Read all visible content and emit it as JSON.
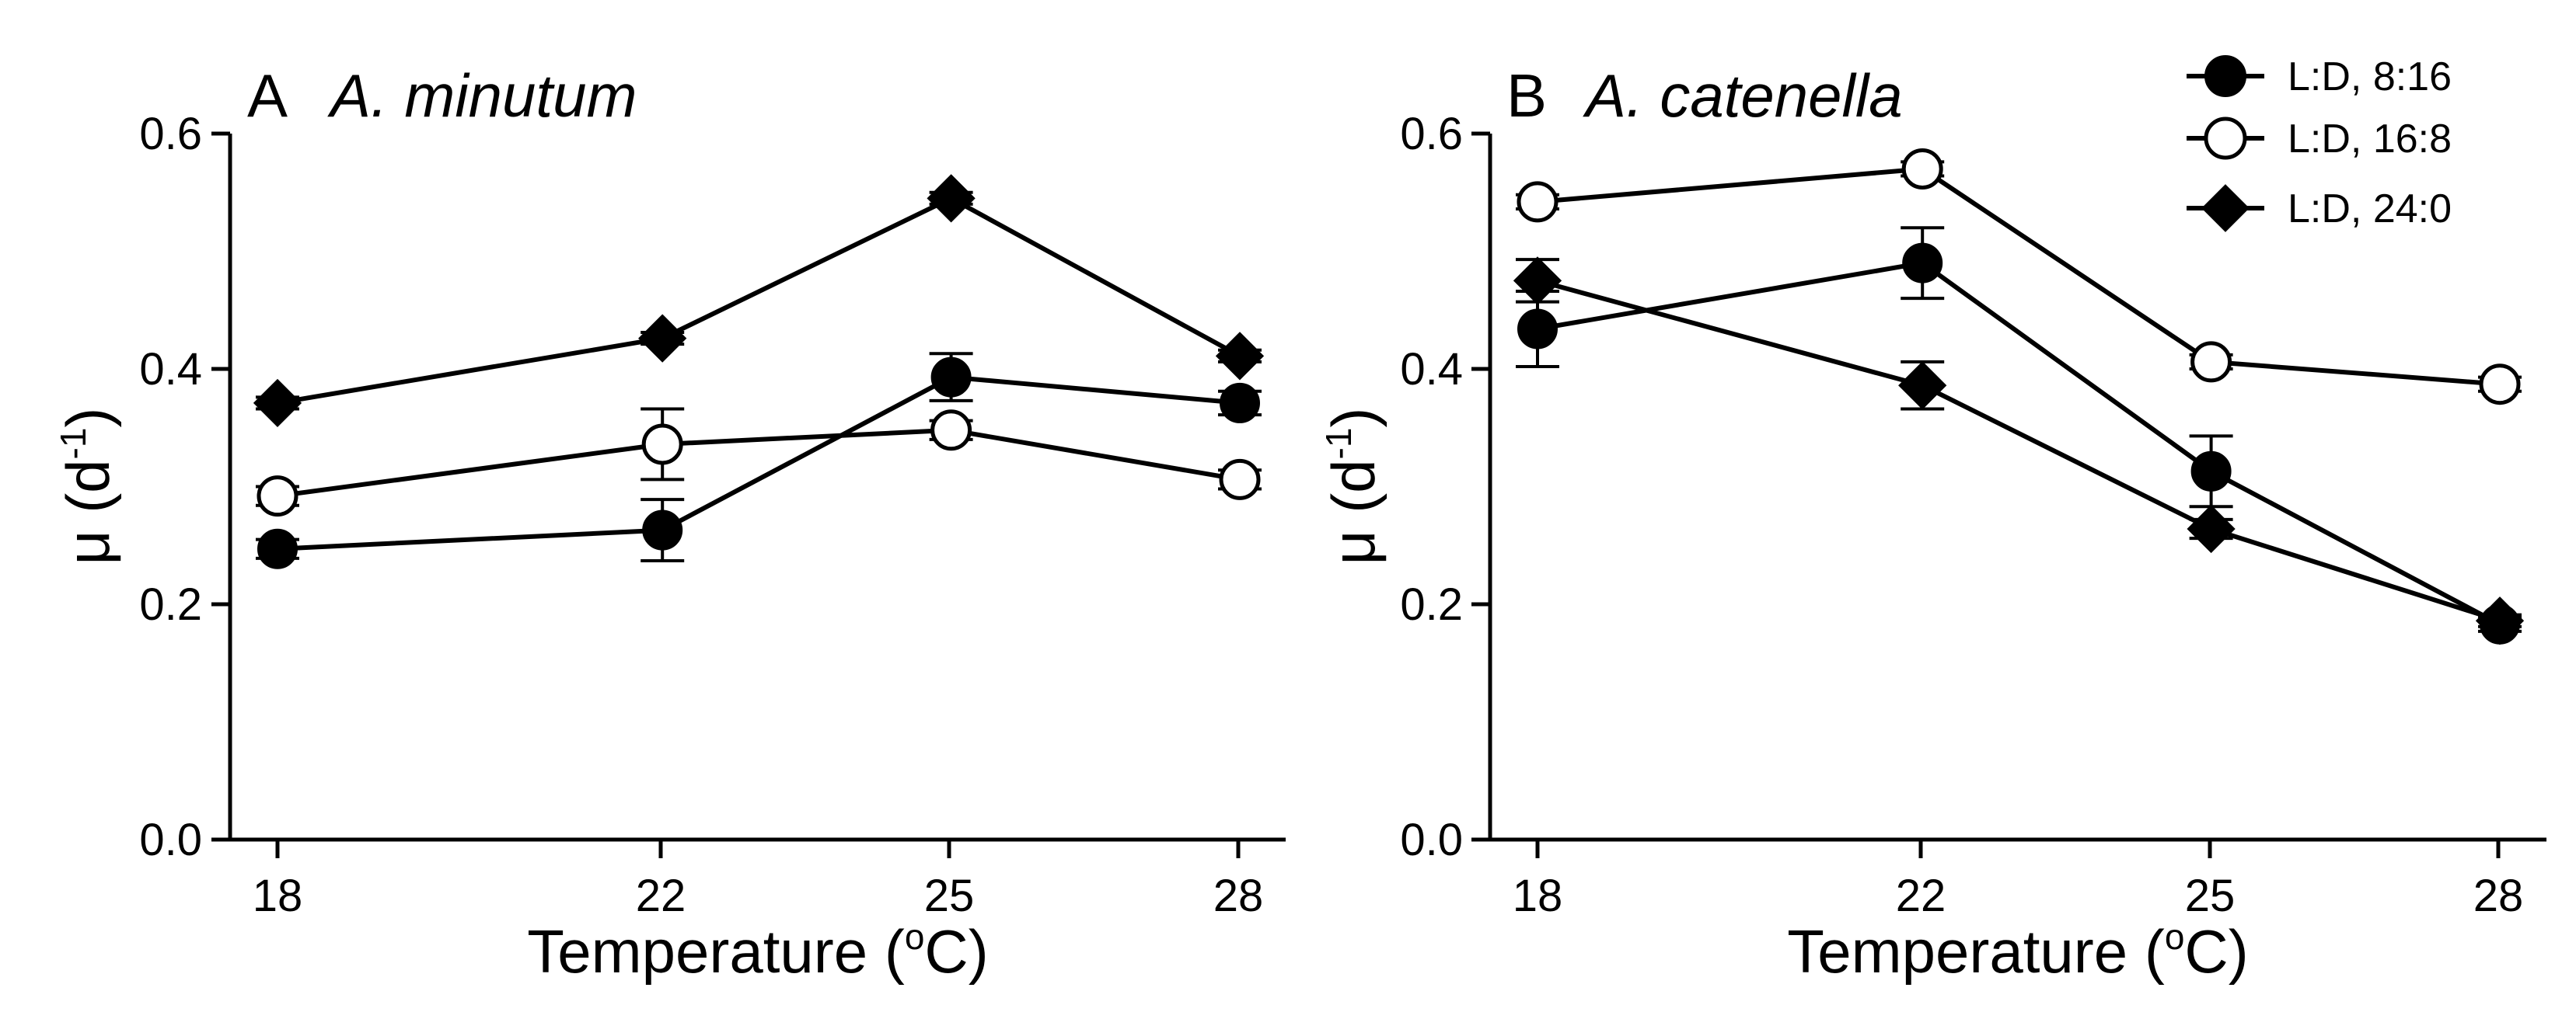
{
  "figure": {
    "legend": {
      "position": "top-right",
      "entries": [
        {
          "series": "8:16",
          "label": "L:D, 8:16",
          "marker": "circle-filled"
        },
        {
          "series": "16:8",
          "label": "L:D, 16:8",
          "marker": "circle-open"
        },
        {
          "series": "24:0",
          "label": "L:D, 24:0",
          "marker": "diamond-filled"
        }
      ]
    }
  },
  "chart_data": [
    {
      "type": "line",
      "panel_letter": "A",
      "title": "A. minutum",
      "xlabel_main": "Temperature (",
      "xlabel_sup": "o",
      "xlabel_end": "C)",
      "ylabel_main": "μ (d",
      "ylabel_sup": "-1",
      "ylabel_end": ")",
      "x": [
        18,
        22,
        25,
        28
      ],
      "x_ticks": [
        "18",
        "22",
        "25",
        "28"
      ],
      "xlim": [
        17.6,
        28.4
      ],
      "ylim": [
        0,
        0.6
      ],
      "y_ticks": [
        "0.0",
        "0.2",
        "0.4",
        "0.6"
      ],
      "series": [
        {
          "name": "L:D, 8:16",
          "marker": "circle-filled",
          "values": [
            0.247,
            0.263,
            0.393,
            0.371
          ],
          "errors": [
            0.008,
            0.026,
            0.02,
            0.01
          ]
        },
        {
          "name": "L:D, 16:8",
          "marker": "circle-open",
          "values": [
            0.292,
            0.336,
            0.348,
            0.306
          ],
          "errors": [
            0.008,
            0.03,
            0.008,
            0.008
          ]
        },
        {
          "name": "L:D, 24:0",
          "marker": "diamond-filled",
          "values": [
            0.371,
            0.426,
            0.545,
            0.411
          ],
          "errors": [
            0.005,
            0.005,
            0.005,
            0.005
          ]
        }
      ]
    },
    {
      "type": "line",
      "panel_letter": "B",
      "title": "A. catenella",
      "xlabel_main": "Temperature (",
      "xlabel_sup": "o",
      "xlabel_end": "C)",
      "ylabel_main": "μ (d",
      "ylabel_sup": "-1",
      "ylabel_end": ")",
      "x": [
        18,
        22,
        25,
        28
      ],
      "x_ticks": [
        "18",
        "22",
        "25",
        "28"
      ],
      "xlim": [
        17.6,
        28.4
      ],
      "ylim": [
        0,
        0.6
      ],
      "y_ticks": [
        "0.0",
        "0.2",
        "0.4",
        "0.6"
      ],
      "series": [
        {
          "name": "L:D, 8:16",
          "marker": "circle-filled",
          "values": [
            0.434,
            0.49,
            0.313,
            0.183
          ],
          "errors": [
            0.032,
            0.03,
            0.03,
            0.006
          ]
        },
        {
          "name": "L:D, 16:8",
          "marker": "circle-open",
          "values": [
            0.542,
            0.57,
            0.406,
            0.387
          ],
          "errors": [
            0.006,
            0.006,
            0.006,
            0.006
          ]
        },
        {
          "name": "L:D, 24:0",
          "marker": "diamond-filled",
          "values": [
            0.475,
            0.386,
            0.264,
            0.186
          ],
          "errors": [
            0.018,
            0.02,
            0.008,
            0.005
          ]
        }
      ]
    }
  ]
}
